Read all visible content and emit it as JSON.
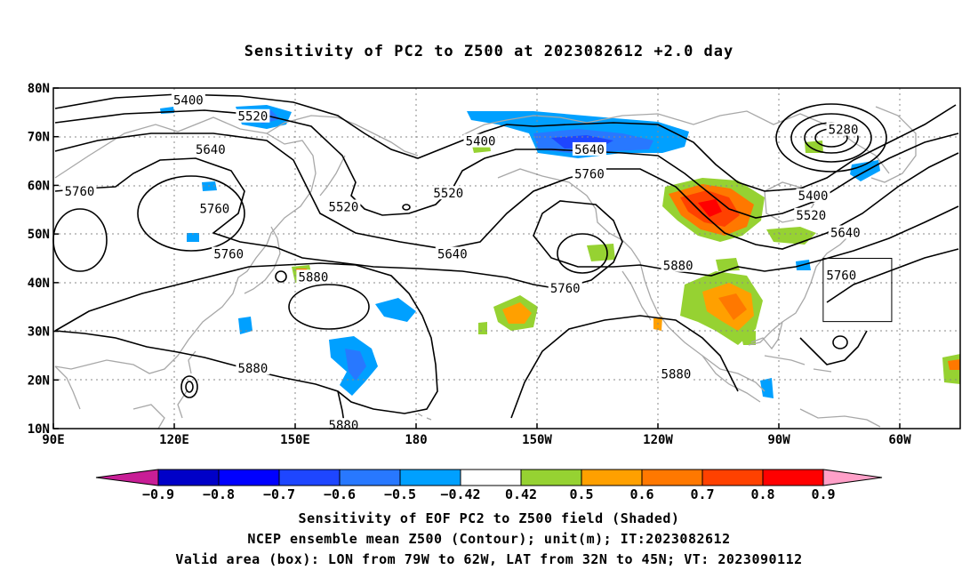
{
  "title": "Sensitivity of PC2 to Z500 at 2023082612 +2.0 day",
  "map": {
    "lat_labels": [
      "80N",
      "70N",
      "60N",
      "50N",
      "40N",
      "30N",
      "20N",
      "10N"
    ],
    "lon_labels": [
      "90E",
      "120E",
      "150E",
      "180",
      "150W",
      "120W",
      "90W",
      "60W"
    ],
    "contour_labels": [
      {
        "text": "5400",
        "lon": 123.5,
        "lat": 77.5
      },
      {
        "text": "5520",
        "lon": 139.5,
        "lat": 74.2
      },
      {
        "text": "5640",
        "lon": 129,
        "lat": 67.4
      },
      {
        "text": "5400",
        "lon": -164,
        "lat": 69.1
      },
      {
        "text": "5520",
        "lon": -172,
        "lat": 58.4
      },
      {
        "text": "5640",
        "lon": -137,
        "lat": 67.4
      },
      {
        "text": "5760",
        "lon": -137,
        "lat": 62.4
      },
      {
        "text": "5280",
        "lon": -74,
        "lat": 71.5
      },
      {
        "text": "5400",
        "lon": -81.5,
        "lat": 57.9
      },
      {
        "text": "5520",
        "lon": -82,
        "lat": 53.9
      },
      {
        "text": "5640",
        "lon": -73.5,
        "lat": 50.3
      },
      {
        "text": "5760",
        "lon": -74.5,
        "lat": 41.5
      },
      {
        "text": "5760",
        "lon": 96.5,
        "lat": 58.8
      },
      {
        "text": "5760",
        "lon": 130,
        "lat": 55.2
      },
      {
        "text": "5520",
        "lon": 162,
        "lat": 55.6
      },
      {
        "text": "5760",
        "lon": 133.5,
        "lat": 45.9
      },
      {
        "text": "5640",
        "lon": -171,
        "lat": 45.9
      },
      {
        "text": "5880",
        "lon": 154.5,
        "lat": 41.2
      },
      {
        "text": "5760",
        "lon": -143,
        "lat": 38.9
      },
      {
        "text": "5880",
        "lon": -115,
        "lat": 43.5
      },
      {
        "text": "5880",
        "lon": 139.5,
        "lat": 22.4
      },
      {
        "text": "5880",
        "lon": -115.5,
        "lat": 21.2
      },
      {
        "text": "5880",
        "lon": 162,
        "lat": 10.7
      }
    ],
    "valid_box": {
      "lon_min": -79,
      "lon_max": -62,
      "lat_min": 32,
      "lat_max": 45
    }
  },
  "colorbar": {
    "labels": [
      "-0.9",
      "-0.8",
      "-0.7",
      "-0.6",
      "-0.5",
      "-0.42",
      "0.42",
      "0.5",
      "0.6",
      "0.7",
      "0.8",
      "0.9"
    ],
    "colors": [
      "#0000c8",
      "#0000ff",
      "#1e46ff",
      "#2878ff",
      "#00a0ff",
      "#ffffff",
      "#96d232",
      "#ffa000",
      "#ff7800",
      "#ff4100",
      "#ff0000"
    ],
    "low_extend_color": "#c81e96",
    "high_extend_color": "#ffa0c8"
  },
  "footer": {
    "line1": "Sensitivity of EOF PC2 to Z500 field (Shaded)",
    "line2": "NCEP ensemble mean Z500 (Contour); unit(m); IT:2023082612",
    "line3": "Valid area (box): LON from 79W to 62W, LAT from 32N to 45N; VT: 2023090112"
  }
}
